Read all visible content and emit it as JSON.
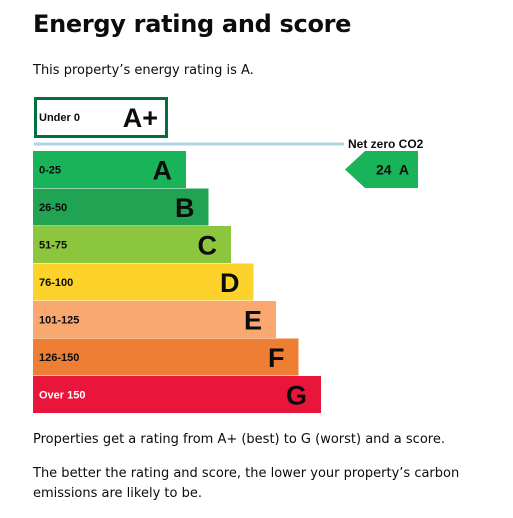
{
  "page": {
    "title": "Energy rating and score",
    "intro": "This property’s energy rating is A.",
    "note_rating": "Properties get a rating from A+ (best) to G (worst) and a score.",
    "note_emissions": "The better the rating and score, the lower your property’s carbon emissions are likely to be."
  },
  "chart_data": {
    "type": "bar",
    "categories": [
      "A+",
      "A",
      "B",
      "C",
      "D",
      "E",
      "F",
      "G"
    ],
    "bands": [
      {
        "letter": "A+",
        "range": "Under 0",
        "value": 0,
        "color": "#ffffff",
        "border": "#00703c",
        "outlined": true
      },
      {
        "letter": "A",
        "range": "0-25",
        "value": 25,
        "color": "#19b459"
      },
      {
        "letter": "B",
        "range": "26-50",
        "value": 50,
        "color": "#20a352"
      },
      {
        "letter": "C",
        "range": "51-75",
        "value": 75,
        "color": "#8cc63f"
      },
      {
        "letter": "D",
        "range": "76-100",
        "value": 100,
        "color": "#fdd22a"
      },
      {
        "letter": "E",
        "range": "101-125",
        "value": 125,
        "color": "#f9a96f"
      },
      {
        "letter": "F",
        "range": "126-150",
        "value": 150,
        "color": "#ef7e35"
      },
      {
        "letter": "G",
        "range": "Over 150",
        "value": 175,
        "color": "#e9153b"
      }
    ],
    "net_zero": {
      "label": "Net zero CO2",
      "line_color": "#b1d4e5"
    },
    "current": {
      "score": "24",
      "rating": "A",
      "color": "#19b459"
    }
  }
}
